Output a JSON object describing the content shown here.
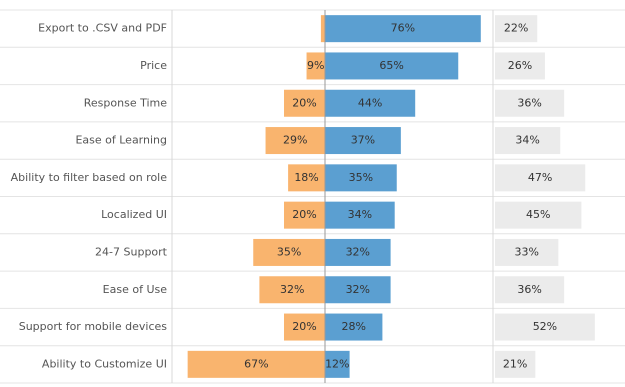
{
  "chart_data": {
    "type": "diverging_bar",
    "categories": [
      "Export to .CSV and PDF",
      "Price",
      "Response Time",
      "Ease of Learning",
      "Ability to filter based on role",
      "Localized UI",
      "24-7 Support",
      "Ease of Use",
      "Support for mobile devices",
      "Ability to Customize UI"
    ],
    "series": [
      {
        "color": "#f9b46e",
        "values": [
          2,
          9,
          20,
          29,
          18,
          20,
          35,
          32,
          20,
          67
        ],
        "value_labels": [
          null,
          "9%",
          "20%",
          "29%",
          "18%",
          "20%",
          "35%",
          "32%",
          "20%",
          "67%"
        ]
      },
      {
        "color": "#5b9fd1",
        "values": [
          76,
          65,
          44,
          37,
          35,
          34,
          32,
          32,
          28,
          12
        ],
        "value_labels": [
          "76%",
          "65%",
          "44%",
          "37%",
          "35%",
          "34%",
          "32%",
          "32%",
          "28%",
          "12%"
        ]
      },
      {
        "color": "#ebebeb",
        "values": [
          22,
          26,
          36,
          34,
          47,
          45,
          33,
          36,
          52,
          21
        ],
        "value_labels": [
          "22%",
          "26%",
          "36%",
          "34%",
          "47%",
          "45%",
          "33%",
          "36%",
          "52%",
          "21%"
        ]
      }
    ]
  }
}
